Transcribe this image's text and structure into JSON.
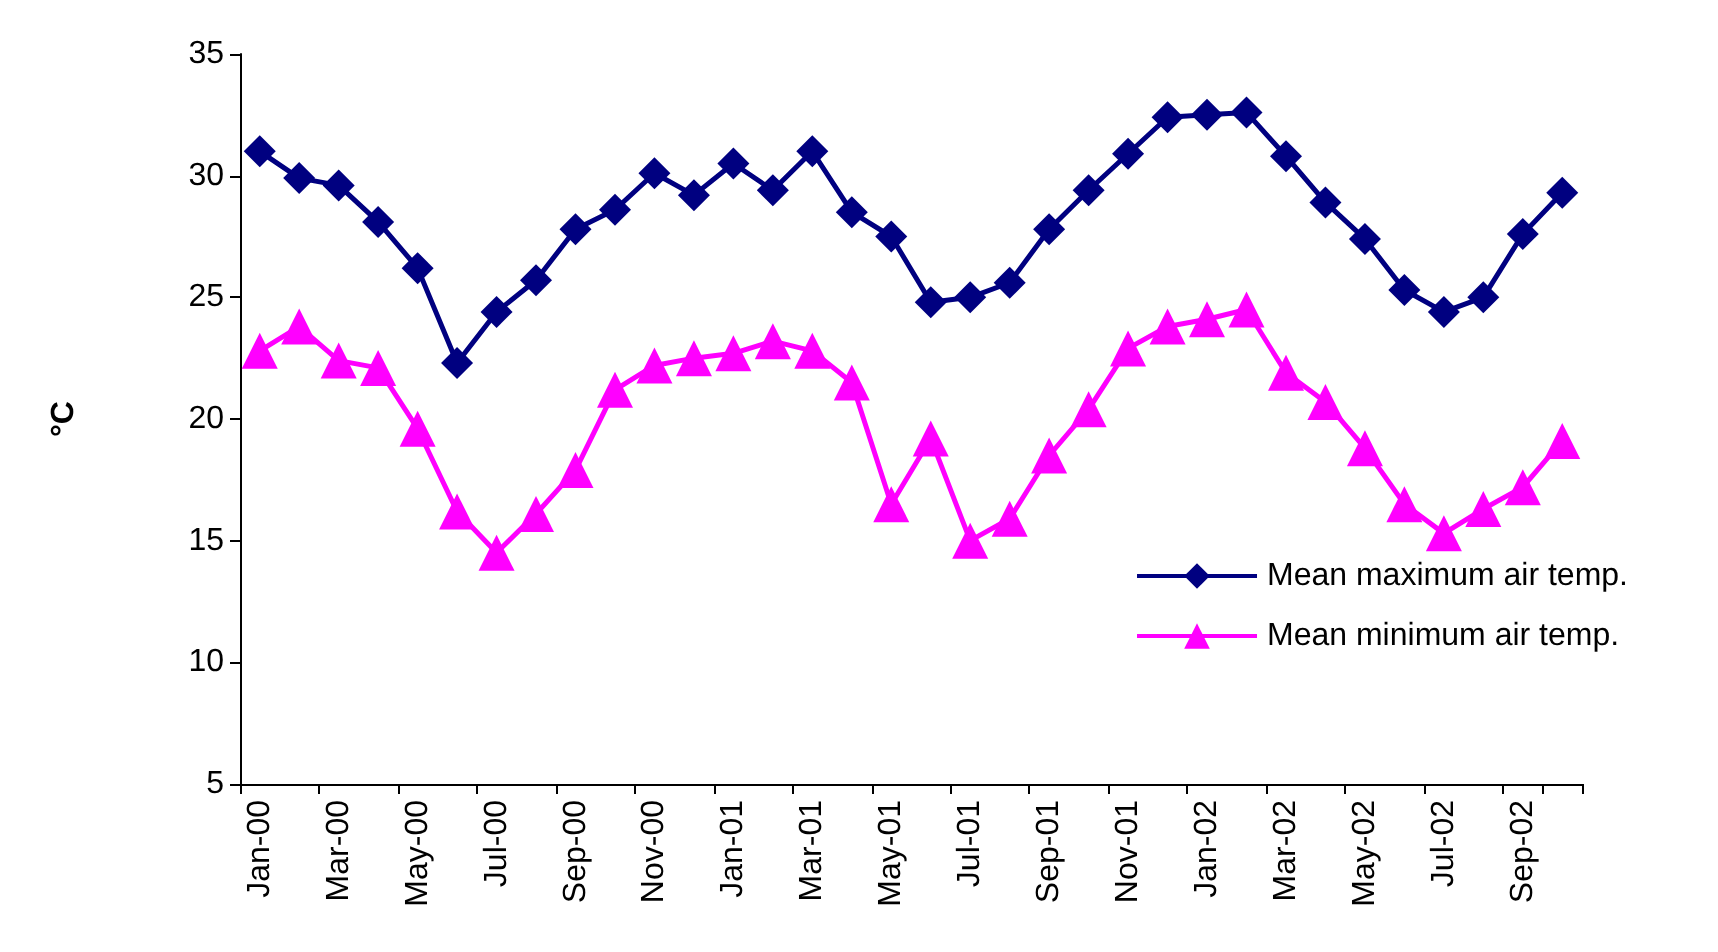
{
  "chart_data": {
    "type": "line",
    "ylabel": "°C",
    "categories": [
      "Jan-00",
      null,
      "Mar-00",
      null,
      "May-00",
      null,
      "Jul-00",
      null,
      "Sep-00",
      null,
      "Nov-00",
      null,
      "Jan-01",
      null,
      "Mar-01",
      null,
      "May-01",
      null,
      "Jul-01",
      null,
      "Sep-01",
      null,
      "Nov-01",
      null,
      "Jan-02",
      null,
      "Mar-02",
      null,
      "May-02",
      null,
      "Jul-02",
      null,
      "Sep-02",
      null
    ],
    "series": [
      {
        "name": "Mean maximum air temp.",
        "color": "#000080",
        "marker": "diamond",
        "values": [
          31.0,
          29.9,
          29.6,
          28.1,
          26.2,
          22.3,
          24.4,
          25.7,
          27.8,
          28.6,
          30.1,
          29.2,
          30.5,
          29.4,
          31.0,
          28.5,
          27.5,
          24.8,
          25.0,
          25.6,
          27.8,
          29.4,
          30.9,
          32.4,
          32.5,
          32.6,
          30.8,
          28.9,
          27.4,
          25.3,
          24.4,
          25.0,
          27.6,
          29.3
        ]
      },
      {
        "name": "Mean minimum air temp.",
        "color": "#ff00ff",
        "marker": "triangle",
        "values": [
          22.8,
          23.8,
          22.4,
          22.1,
          19.6,
          16.2,
          14.5,
          16.1,
          17.9,
          21.2,
          22.2,
          22.5,
          22.7,
          23.2,
          22.8,
          21.5,
          16.5,
          19.2,
          15.0,
          15.9,
          18.5,
          20.4,
          22.9,
          23.8,
          24.1,
          24.5,
          21.9,
          20.7,
          18.8,
          16.5,
          15.3,
          16.3,
          17.2,
          19.1
        ]
      }
    ],
    "ylim": [
      5,
      35
    ],
    "yticks": [
      5,
      10,
      15,
      20,
      25,
      30,
      35
    ],
    "grid": false,
    "legend": "bottom right"
  }
}
